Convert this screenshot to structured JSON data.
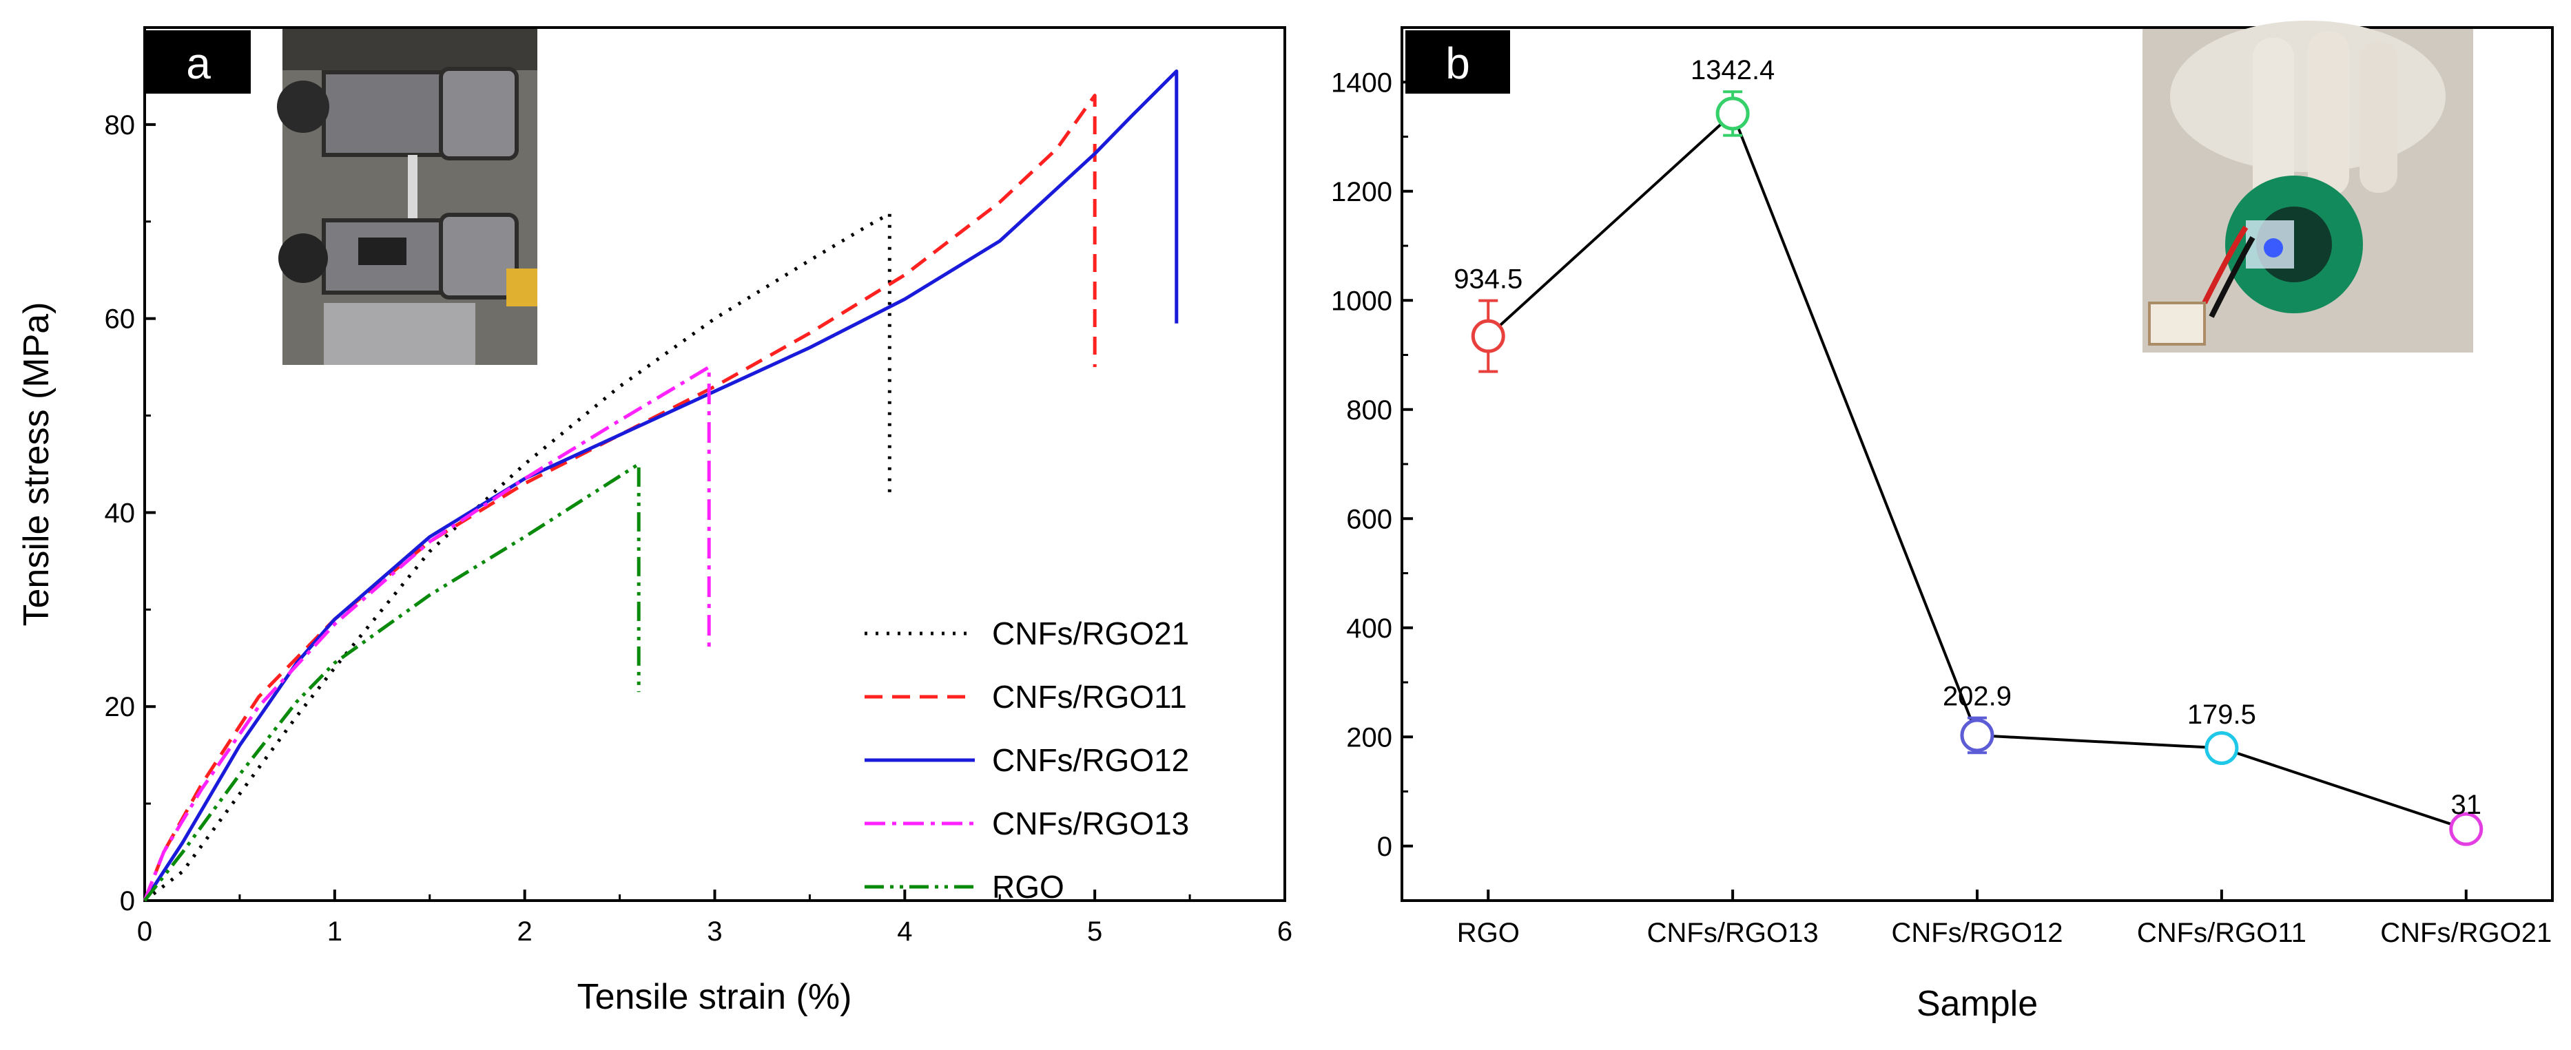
{
  "chart_data": [
    {
      "panel": "a",
      "type": "line",
      "title": "",
      "xlabel": "Tensile strain (%)",
      "ylabel": "Tensile stress (MPa)",
      "xlim": [
        0,
        6
      ],
      "ylim": [
        0,
        90
      ],
      "xticks": [
        0,
        1,
        2,
        3,
        4,
        5,
        6
      ],
      "yticks": [
        0,
        20,
        40,
        60,
        80
      ],
      "legend_position": "bottom-right",
      "inset": "photo of tensile testing grips",
      "series": [
        {
          "name": "CNFs/RGO21",
          "color": "#000000",
          "dash": "dotted",
          "points": [
            [
              0,
              0
            ],
            [
              0.2,
              3
            ],
            [
              0.5,
              11
            ],
            [
              0.8,
              19
            ],
            [
              1.0,
              24
            ],
            [
              1.5,
              36
            ],
            [
              2.0,
              45
            ],
            [
              2.5,
              53
            ],
            [
              3.0,
              60
            ],
            [
              3.5,
              66
            ],
            [
              3.8,
              69.5
            ],
            [
              3.92,
              70.8
            ],
            [
              3.92,
              41.5
            ]
          ]
        },
        {
          "name": "CNFs/RGO11",
          "color": "#ff2020",
          "dash": "dashed",
          "points": [
            [
              0,
              0
            ],
            [
              0.1,
              5
            ],
            [
              0.3,
              12
            ],
            [
              0.6,
              21
            ],
            [
              1.0,
              29
            ],
            [
              1.5,
              37
            ],
            [
              2.0,
              43
            ],
            [
              2.5,
              48
            ],
            [
              3.0,
              53
            ],
            [
              3.5,
              58.5
            ],
            [
              4.0,
              64.5
            ],
            [
              4.5,
              72
            ],
            [
              4.8,
              77.5
            ],
            [
              5.0,
              83
            ],
            [
              5.0,
              55
            ]
          ]
        },
        {
          "name": "CNFs/RGO12",
          "color": "#1a1adb",
          "dash": "solid",
          "points": [
            [
              0,
              0
            ],
            [
              0.2,
              6
            ],
            [
              0.5,
              16
            ],
            [
              0.8,
              24.5
            ],
            [
              1.0,
              29
            ],
            [
              1.5,
              37.5
            ],
            [
              2.0,
              43.5
            ],
            [
              2.5,
              48
            ],
            [
              3.0,
              52.5
            ],
            [
              3.5,
              57
            ],
            [
              4.0,
              62
            ],
            [
              4.5,
              68
            ],
            [
              5.0,
              77
            ],
            [
              5.2,
              81
            ],
            [
              5.43,
              85.5
            ],
            [
              5.43,
              59.5
            ]
          ]
        },
        {
          "name": "CNFs/RGO13",
          "color": "#ff22ff",
          "dash": "dash-dot",
          "points": [
            [
              0,
              0
            ],
            [
              0.1,
              5
            ],
            [
              0.3,
              11.5
            ],
            [
              0.6,
              20
            ],
            [
              1.0,
              28.5
            ],
            [
              1.5,
              37
            ],
            [
              2.0,
              43.5
            ],
            [
              2.5,
              49.5
            ],
            [
              2.8,
              53
            ],
            [
              2.97,
              55
            ],
            [
              2.97,
              25.5
            ]
          ]
        },
        {
          "name": "RGO",
          "color": "#0a8a0a",
          "dash": "dash-dot-dot",
          "points": [
            [
              0,
              0
            ],
            [
              0.2,
              5
            ],
            [
              0.5,
              13
            ],
            [
              0.8,
              20.5
            ],
            [
              1.0,
              24.5
            ],
            [
              1.5,
              31.5
            ],
            [
              2.0,
              37.5
            ],
            [
              2.4,
              42.5
            ],
            [
              2.6,
              45
            ],
            [
              2.6,
              21.5
            ]
          ]
        }
      ]
    },
    {
      "panel": "b",
      "type": "line",
      "title": "",
      "xlabel": "Sample",
      "ylabel": "",
      "ylim": [
        -100,
        1500
      ],
      "yticks": [
        0,
        200,
        400,
        600,
        800,
        1000,
        1200,
        1400
      ],
      "categories": [
        "RGO",
        "CNFs/RGO13",
        "CNFs/RGO12",
        "CNFs/RGO11",
        "CNFs/RGO21"
      ],
      "values": [
        934.5,
        1342.4,
        202.9,
        179.5,
        31
      ],
      "data_labels": [
        "934.5",
        "1342.4",
        "202.9",
        "179.5",
        "31"
      ],
      "errors": [
        65,
        40,
        32,
        22,
        5
      ],
      "marker_colors": [
        "#e8413d",
        "#35d06a",
        "#5c5cd6",
        "#1fc8e8",
        "#e23ee2"
      ],
      "line_color": "#000000",
      "inset": "photo of hand pressing circuit with LED"
    }
  ]
}
